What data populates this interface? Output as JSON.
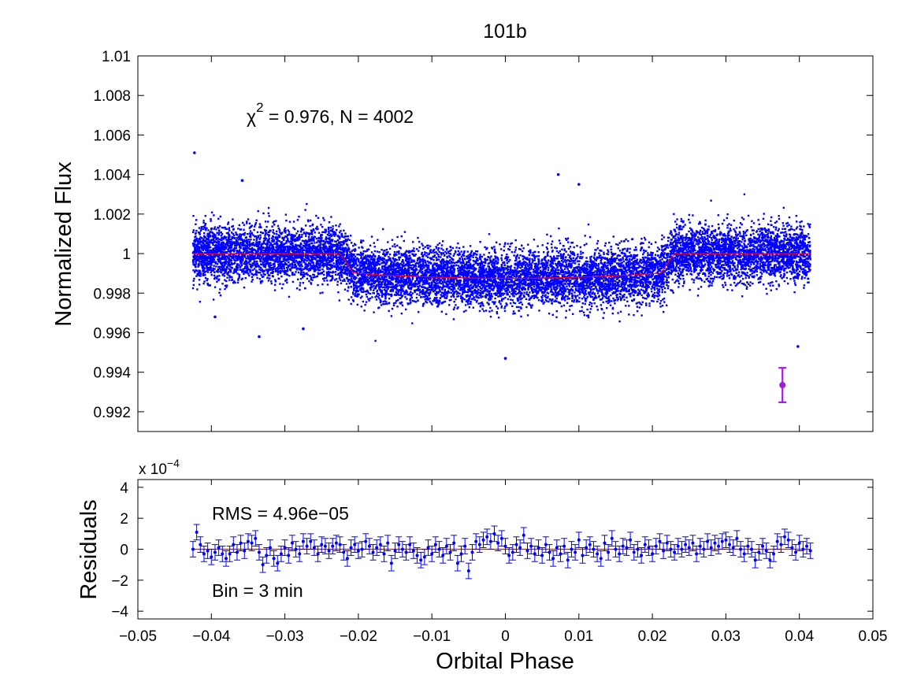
{
  "chart_data": [
    {
      "panel": "top",
      "type": "scatter",
      "title": "101b",
      "ylabel": "Normalized Flux",
      "xlabel": "",
      "xlim": [
        -0.05,
        0.05
      ],
      "ylim": [
        0.991,
        1.01
      ],
      "xticks": [
        -0.05,
        -0.04,
        -0.03,
        -0.02,
        -0.01,
        0,
        0.01,
        0.02,
        0.03,
        0.04,
        0.05
      ],
      "yticks": [
        0.992,
        0.994,
        0.996,
        0.998,
        1,
        1.002,
        1.004,
        1.006,
        1.008,
        1.01
      ],
      "ytick_labels": [
        "0.992",
        "0.994",
        "0.996",
        "0.998",
        "1",
        "1.002",
        "1.004",
        "1.006",
        "1.008",
        "1.01"
      ],
      "annotation": {
        "chi_symbol": "χ",
        "chi_exp": "2",
        "chi_rest": " = 0.976, N = 4002"
      },
      "data_range_x": [
        -0.0425,
        0.0415
      ],
      "model_in_transit_depth": 0.00125,
      "transit_edges": [
        -0.0225,
        0.023
      ],
      "point_scatter_sigma": 0.0007,
      "n_points": 4002,
      "outliers": [
        {
          "x": -0.0423,
          "y": 1.0051
        },
        {
          "x": -0.0358,
          "y": 1.0037
        },
        {
          "x": 0.0072,
          "y": 1.004
        },
        {
          "x": 0.01,
          "y": 1.0035
        },
        {
          "x": -0.0335,
          "y": 0.9958
        },
        {
          "x": 0.0,
          "y": 0.9947
        },
        {
          "x": 0.0398,
          "y": 0.9953
        },
        {
          "x": -0.0395,
          "y": 0.9968
        },
        {
          "x": -0.0275,
          "y": 0.9962
        }
      ],
      "error_bar": {
        "x": 0.0377,
        "y": 0.99335,
        "err": 0.00087
      },
      "colors": {
        "points": "#0000ff",
        "model": "#ff0000",
        "errbar": "#9c1fd8"
      }
    },
    {
      "panel": "bottom",
      "type": "scatter",
      "ylabel": "Residuals",
      "xlabel": "Orbital Phase",
      "xlim": [
        -0.05,
        0.05
      ],
      "ylim": [
        -4.5,
        4.5
      ],
      "scale_label": {
        "base": "x 10",
        "exp": "−4"
      },
      "xticks": [
        -0.05,
        -0.04,
        -0.03,
        -0.02,
        -0.01,
        0,
        0.01,
        0.02,
        0.03,
        0.04,
        0.05
      ],
      "xtick_labels": [
        "−0.05",
        "−0.04",
        "−0.03",
        "−0.02",
        "−0.01",
        "0",
        "0.01",
        "0.02",
        "0.03",
        "0.04",
        "0.05"
      ],
      "yticks": [
        -4,
        -2,
        0,
        2,
        4
      ],
      "ytick_labels": [
        "−4",
        "−2",
        "0",
        "2",
        "4"
      ],
      "rms_text": "RMS = 4.96e−05",
      "bin_text": "Bin = 3 min",
      "bin_error": 0.5,
      "residuals": [
        {
          "x": -0.0425,
          "y": 0.0
        },
        {
          "x": -0.042,
          "y": 1.1
        },
        {
          "x": -0.0415,
          "y": 0.3
        },
        {
          "x": -0.041,
          "y": -0.3
        },
        {
          "x": -0.0405,
          "y": -0.1
        },
        {
          "x": -0.04,
          "y": -0.5
        },
        {
          "x": -0.0395,
          "y": -0.2
        },
        {
          "x": -0.039,
          "y": 0.1
        },
        {
          "x": -0.0385,
          "y": -0.3
        },
        {
          "x": -0.038,
          "y": -0.6
        },
        {
          "x": -0.0375,
          "y": -0.3
        },
        {
          "x": -0.037,
          "y": 0.3
        },
        {
          "x": -0.0365,
          "y": -0.2
        },
        {
          "x": -0.036,
          "y": 0.4
        },
        {
          "x": -0.0355,
          "y": -0.1
        },
        {
          "x": -0.035,
          "y": 0.5
        },
        {
          "x": -0.0345,
          "y": 0.4
        },
        {
          "x": -0.034,
          "y": 0.7
        },
        {
          "x": -0.0335,
          "y": -0.2
        },
        {
          "x": -0.033,
          "y": -1.0
        },
        {
          "x": -0.0325,
          "y": -0.4
        },
        {
          "x": -0.032,
          "y": 0.1
        },
        {
          "x": -0.0315,
          "y": -0.6
        },
        {
          "x": -0.031,
          "y": -0.9
        },
        {
          "x": -0.0305,
          "y": -0.3
        },
        {
          "x": -0.03,
          "y": 0.1
        },
        {
          "x": -0.0295,
          "y": -0.4
        },
        {
          "x": -0.029,
          "y": 0.4
        },
        {
          "x": -0.0285,
          "y": 0.0
        },
        {
          "x": -0.028,
          "y": -0.3
        },
        {
          "x": -0.0275,
          "y": 0.5
        },
        {
          "x": -0.027,
          "y": 0.2
        },
        {
          "x": -0.0265,
          "y": 0.5
        },
        {
          "x": -0.026,
          "y": 0.1
        },
        {
          "x": -0.0255,
          "y": -0.3
        },
        {
          "x": -0.025,
          "y": 0.3
        },
        {
          "x": -0.0245,
          "y": 0.2
        },
        {
          "x": -0.024,
          "y": -0.1
        },
        {
          "x": -0.0235,
          "y": 0.2
        },
        {
          "x": -0.023,
          "y": 0.4
        },
        {
          "x": -0.0225,
          "y": 0.3
        },
        {
          "x": -0.022,
          "y": -0.2
        },
        {
          "x": -0.0215,
          "y": -0.6
        },
        {
          "x": -0.021,
          "y": 0.1
        },
        {
          "x": -0.0205,
          "y": 0.3
        },
        {
          "x": -0.02,
          "y": -0.1
        },
        {
          "x": -0.0195,
          "y": 0.0
        },
        {
          "x": -0.019,
          "y": 0.5
        },
        {
          "x": -0.0185,
          "y": 0.2
        },
        {
          "x": -0.018,
          "y": -0.2
        },
        {
          "x": -0.0175,
          "y": 0.1
        },
        {
          "x": -0.017,
          "y": 0.3
        },
        {
          "x": -0.0165,
          "y": -0.3
        },
        {
          "x": -0.016,
          "y": 0.4
        },
        {
          "x": -0.0155,
          "y": -0.9
        },
        {
          "x": -0.015,
          "y": -0.1
        },
        {
          "x": -0.0145,
          "y": 0.3
        },
        {
          "x": -0.014,
          "y": 0.0
        },
        {
          "x": -0.0135,
          "y": -0.2
        },
        {
          "x": -0.013,
          "y": 0.3
        },
        {
          "x": -0.0125,
          "y": -0.1
        },
        {
          "x": -0.012,
          "y": -0.4
        },
        {
          "x": -0.0115,
          "y": -0.7
        },
        {
          "x": -0.011,
          "y": -0.5
        },
        {
          "x": -0.0105,
          "y": 0.1
        },
        {
          "x": -0.01,
          "y": -0.3
        },
        {
          "x": -0.0095,
          "y": 0.3
        },
        {
          "x": -0.009,
          "y": 0.0
        },
        {
          "x": -0.0085,
          "y": -0.4
        },
        {
          "x": -0.008,
          "y": 0.2
        },
        {
          "x": -0.0075,
          "y": -0.2
        },
        {
          "x": -0.007,
          "y": 0.4
        },
        {
          "x": -0.0065,
          "y": -0.9
        },
        {
          "x": -0.006,
          "y": -0.3
        },
        {
          "x": -0.0055,
          "y": 0.2
        },
        {
          "x": -0.005,
          "y": -1.4
        },
        {
          "x": -0.0045,
          "y": -0.2
        },
        {
          "x": -0.004,
          "y": 0.5
        },
        {
          "x": -0.0035,
          "y": 0.3
        },
        {
          "x": -0.003,
          "y": 0.6
        },
        {
          "x": -0.0025,
          "y": 0.8
        },
        {
          "x": -0.002,
          "y": 0.5
        },
        {
          "x": -0.0015,
          "y": 1.0
        },
        {
          "x": -0.001,
          "y": 0.4
        },
        {
          "x": -0.0005,
          "y": 0.7
        },
        {
          "x": 0.0,
          "y": 0.2
        },
        {
          "x": 0.0005,
          "y": -0.4
        },
        {
          "x": 0.001,
          "y": -0.2
        },
        {
          "x": 0.0015,
          "y": 0.3
        },
        {
          "x": 0.002,
          "y": 0.1
        },
        {
          "x": 0.0025,
          "y": 0.9
        },
        {
          "x": 0.003,
          "y": -0.1
        },
        {
          "x": 0.0035,
          "y": 0.2
        },
        {
          "x": 0.004,
          "y": -0.3
        },
        {
          "x": 0.0045,
          "y": 0.1
        },
        {
          "x": 0.005,
          "y": -0.4
        },
        {
          "x": 0.0055,
          "y": 0.3
        },
        {
          "x": 0.006,
          "y": -0.2
        },
        {
          "x": 0.0065,
          "y": -0.6
        },
        {
          "x": 0.007,
          "y": 0.1
        },
        {
          "x": 0.0075,
          "y": -0.3
        },
        {
          "x": 0.008,
          "y": 0.2
        },
        {
          "x": 0.0085,
          "y": -0.7
        },
        {
          "x": 0.009,
          "y": 0.0
        },
        {
          "x": 0.0095,
          "y": -0.2
        },
        {
          "x": 0.01,
          "y": 0.6
        },
        {
          "x": 0.0105,
          "y": -0.4
        },
        {
          "x": 0.011,
          "y": 0.1
        },
        {
          "x": 0.0115,
          "y": 0.3
        },
        {
          "x": 0.012,
          "y": 0.0
        },
        {
          "x": 0.0125,
          "y": -0.3
        },
        {
          "x": 0.013,
          "y": -0.6
        },
        {
          "x": 0.0135,
          "y": 0.4
        },
        {
          "x": 0.014,
          "y": -0.2
        },
        {
          "x": 0.0145,
          "y": 0.7
        },
        {
          "x": 0.015,
          "y": 0.0
        },
        {
          "x": 0.0155,
          "y": -0.3
        },
        {
          "x": 0.016,
          "y": 0.2
        },
        {
          "x": 0.0165,
          "y": 0.1
        },
        {
          "x": 0.017,
          "y": 0.6
        },
        {
          "x": 0.0175,
          "y": -0.2
        },
        {
          "x": 0.018,
          "y": 0.0
        },
        {
          "x": 0.0185,
          "y": -0.4
        },
        {
          "x": 0.019,
          "y": 0.3
        },
        {
          "x": 0.0195,
          "y": 0.1
        },
        {
          "x": 0.02,
          "y": -0.3
        },
        {
          "x": 0.0205,
          "y": 0.2
        },
        {
          "x": 0.021,
          "y": 0.5
        },
        {
          "x": 0.0215,
          "y": -0.1
        },
        {
          "x": 0.022,
          "y": 0.4
        },
        {
          "x": 0.0225,
          "y": 0.0
        },
        {
          "x": 0.023,
          "y": -0.2
        },
        {
          "x": 0.0235,
          "y": 0.2
        },
        {
          "x": 0.024,
          "y": 0.0
        },
        {
          "x": 0.0245,
          "y": 0.3
        },
        {
          "x": 0.025,
          "y": 0.1
        },
        {
          "x": 0.0255,
          "y": 0.4
        },
        {
          "x": 0.026,
          "y": -0.3
        },
        {
          "x": 0.0265,
          "y": 0.2
        },
        {
          "x": 0.027,
          "y": 0.0
        },
        {
          "x": 0.0275,
          "y": 0.5
        },
        {
          "x": 0.028,
          "y": 0.1
        },
        {
          "x": 0.0285,
          "y": 0.4
        },
        {
          "x": 0.029,
          "y": 0.2
        },
        {
          "x": 0.0295,
          "y": 0.5
        },
        {
          "x": 0.03,
          "y": 0.6
        },
        {
          "x": 0.0305,
          "y": 0.3
        },
        {
          "x": 0.031,
          "y": 0.1
        },
        {
          "x": 0.0315,
          "y": 0.7
        },
        {
          "x": 0.032,
          "y": 0.0
        },
        {
          "x": 0.0325,
          "y": -0.3
        },
        {
          "x": 0.033,
          "y": 0.2
        },
        {
          "x": 0.0335,
          "y": 0.0
        },
        {
          "x": 0.034,
          "y": -0.7
        },
        {
          "x": 0.0345,
          "y": -0.2
        },
        {
          "x": 0.035,
          "y": 0.2
        },
        {
          "x": 0.0355,
          "y": -0.1
        },
        {
          "x": 0.036,
          "y": -0.7
        },
        {
          "x": 0.0365,
          "y": -0.3
        },
        {
          "x": 0.037,
          "y": 0.5
        },
        {
          "x": 0.0375,
          "y": 0.3
        },
        {
          "x": 0.038,
          "y": 0.8
        },
        {
          "x": 0.0385,
          "y": 0.6
        },
        {
          "x": 0.039,
          "y": 0.1
        },
        {
          "x": 0.0395,
          "y": -0.2
        },
        {
          "x": 0.04,
          "y": 0.4
        },
        {
          "x": 0.0405,
          "y": 0.0
        },
        {
          "x": 0.041,
          "y": 0.2
        },
        {
          "x": 0.0415,
          "y": -0.1
        }
      ],
      "colors": {
        "points": "#0000ff",
        "zero_line": "#ff0000"
      }
    }
  ]
}
